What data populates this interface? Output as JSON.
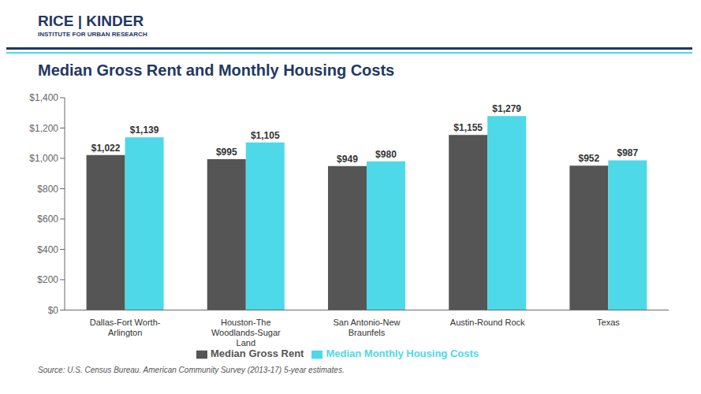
{
  "chart_data": {
    "type": "bar",
    "title": "Median Gross Rent and Monthly Housing Costs",
    "annotations": [
      "RICE | KINDER",
      "INSTITUTE FOR URBAN RESEARCH",
      "Source: U.S. Census Bureau.  American Community Survey (2013-17) 5-year estimates."
    ],
    "categories": [
      "Dallas-Fort Worth-\nArlington",
      "Houston-The\nWoodlands-Sugar\nLand",
      "San Antonio-New\nBraunfels",
      "Austin-Round Rock",
      "Texas"
    ],
    "series": [
      {
        "name": "Median Gross Rent",
        "color": "#555555",
        "values": [
          1022,
          995,
          949,
          1155,
          952
        ],
        "value_labels": [
          "$1,022",
          "$995",
          "$949",
          "$1,155",
          "$952"
        ]
      },
      {
        "name": "Median Monthly Housing Costs",
        "color": "#4dd9e8",
        "values": [
          1139,
          1105,
          980,
          1279,
          987
        ],
        "value_labels": [
          "$1,139",
          "$1,105",
          "$980",
          "$1,279",
          "$987"
        ]
      }
    ],
    "ylim": [
      0,
      1400
    ],
    "yticks": [
      {
        "value": 0,
        "label": "$0"
      },
      {
        "value": 200,
        "label": "$200"
      },
      {
        "value": 400,
        "label": "$400"
      },
      {
        "value": 600,
        "label": "$600"
      },
      {
        "value": 800,
        "label": "$800"
      },
      {
        "value": 1000,
        "label": "$1,000"
      },
      {
        "value": 1200,
        "label": "$1,200"
      },
      {
        "value": 1400,
        "label": "$1,400"
      }
    ],
    "grid": false,
    "legend": "bottom",
    "data_labels": true
  }
}
